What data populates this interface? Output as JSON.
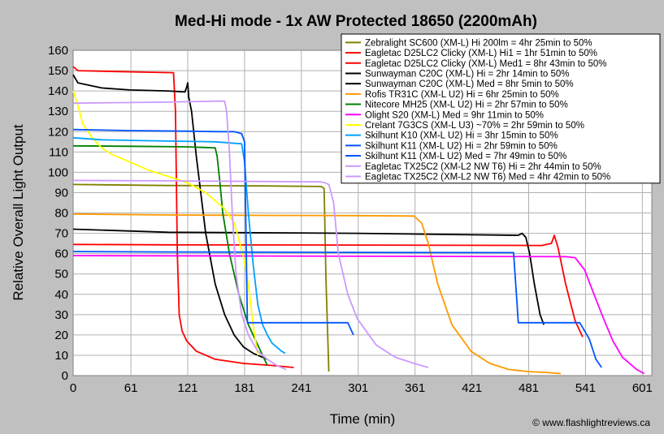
{
  "chart_data": {
    "type": "line",
    "title": "Med-Hi mode - 1x AW Protected 18650 (2200mAh)",
    "xlabel": "Time (min)",
    "ylabel": "Relative Overall Light Output",
    "xlim": [
      0,
      611
    ],
    "ylim": [
      0,
      160
    ],
    "x_ticks": [
      0,
      61,
      121,
      181,
      241,
      301,
      361,
      421,
      481,
      541,
      601
    ],
    "y_ticks": [
      0,
      10,
      20,
      30,
      40,
      50,
      60,
      70,
      80,
      90,
      100,
      110,
      120,
      130,
      140,
      150,
      160
    ],
    "grid": true,
    "legend_position": "top-right",
    "credit": "© www.flashlightreviews.ca",
    "series": [
      {
        "name": "Zebralight SC600 (XM-L) Hi 200lm = 4hr 25min to 50%",
        "color": "#808000",
        "x": [
          0,
          100,
          200,
          262,
          265,
          267,
          270
        ],
        "y": [
          94,
          93.5,
          93.3,
          93,
          92,
          47,
          2
        ]
      },
      {
        "name": "Eagletac D25LC2 Clicky (XM-L) Hi1 = 1hr 51min to 50%",
        "color": "#ff0000",
        "x": [
          0,
          5,
          50,
          106,
          108,
          110,
          112,
          115,
          120,
          130,
          150,
          180,
          210,
          233
        ],
        "y": [
          152,
          150,
          149.5,
          149,
          130,
          60,
          30,
          22,
          17,
          12,
          8,
          6,
          5,
          4
        ]
      },
      {
        "name": "Eagletac D25LC2 Clicky (XM-L) Med1 = 8hr 43min to 50%",
        "color": "#ff0000",
        "x": [
          0,
          100,
          300,
          495,
          500,
          505,
          508,
          512,
          520,
          530,
          538
        ],
        "y": [
          64.5,
          64.3,
          64.2,
          64,
          64.5,
          65,
          69,
          63,
          45,
          27,
          19
        ]
      },
      {
        "name": "Sunwayman C20C (XM-L) Hi = 2hr 14min to 50%",
        "color": "#000000",
        "x": [
          0,
          5,
          30,
          60,
          100,
          118,
          120,
          121,
          122,
          125,
          130,
          140,
          150,
          160,
          170,
          180,
          190,
          200,
          205
        ],
        "y": [
          148,
          144,
          141.5,
          140.5,
          140,
          139.5,
          142,
          144,
          137,
          130,
          108,
          70,
          45,
          30,
          20,
          14,
          11,
          9,
          8
        ]
      },
      {
        "name": "Sunwayman C20C (XM-L) Med = 8hr 5min to 50%",
        "color": "#000000",
        "x": [
          0,
          100,
          300,
          470,
          474,
          478,
          482,
          487,
          493,
          497
        ],
        "y": [
          72,
          70.5,
          70,
          69,
          70,
          68,
          60,
          45,
          30,
          25
        ]
      },
      {
        "name": "Rofis TR31C (XM-L U2) Hi = 6hr 25min to 50%",
        "color": "#ff9900",
        "x": [
          0,
          100,
          200,
          300,
          360,
          368,
          375,
          385,
          400,
          420,
          440,
          460,
          480,
          500,
          515
        ],
        "y": [
          79.5,
          79,
          78.8,
          78.7,
          78.5,
          75,
          65,
          45,
          25,
          12,
          6,
          3,
          2,
          1.5,
          1
        ]
      },
      {
        "name": "Nitecore MH25 (XM-L U2) Hi = 2hr 57min to 50%",
        "color": "#008000",
        "x": [
          0,
          60,
          120,
          150,
          152,
          155,
          158,
          165,
          175,
          185,
          195,
          200,
          205
        ],
        "y": [
          113,
          112.8,
          112.5,
          112,
          108,
          95,
          80,
          60,
          40,
          25,
          15,
          10,
          5
        ]
      },
      {
        "name": "Olight S20 (XM-L) Med = 9hr 11min to 50%",
        "color": "#ff00ff",
        "x": [
          0,
          200,
          400,
          520,
          530,
          540,
          550,
          560,
          570,
          580,
          595,
          603
        ],
        "y": [
          59,
          58.8,
          58.6,
          58.5,
          58,
          52,
          40,
          28,
          17,
          9,
          3,
          1
        ]
      },
      {
        "name": "Crelant 7G3CS (XM-L U3) ~70% = 2hr 59min to 50%",
        "color": "#ffff00",
        "x": [
          0,
          5,
          10,
          20,
          30,
          40,
          60,
          80,
          100,
          120,
          140,
          160,
          170,
          175,
          180,
          185,
          190,
          195
        ],
        "y": [
          140,
          133,
          124,
          117,
          112,
          109,
          105,
          101,
          98,
          95,
          90,
          82,
          75,
          67,
          58,
          45,
          25,
          10
        ]
      },
      {
        "name": "Skilhunt K10 (XM-L U2) Hi = 3hr 15min to 50%",
        "color": "#00a0ff",
        "x": [
          0,
          30,
          80,
          150,
          178,
          181,
          185,
          190,
          195,
          200,
          205,
          210,
          215,
          220,
          224
        ],
        "y": [
          117,
          116,
          115.5,
          115,
          114,
          105,
          80,
          55,
          35,
          25,
          20,
          16,
          14,
          12,
          11
        ]
      },
      {
        "name": "Skilhunt K11 (XM-L U2) Hi = 2hr 59min to 50%",
        "color": "#0055ff",
        "x": [
          0,
          60,
          120,
          155,
          163,
          170,
          178,
          181,
          184,
          190,
          200,
          210,
          230,
          260,
          280,
          290,
          296
        ],
        "y": [
          121,
          120.5,
          120.2,
          120,
          120,
          120,
          119,
          115,
          26,
          26,
          26,
          26,
          26,
          26,
          26,
          26,
          20
        ]
      },
      {
        "name": "Skilhunt K11 (XM-L U2) Med = 7hr 49min to 50%",
        "color": "#0055ff",
        "x": [
          0,
          100,
          300,
          450,
          465,
          468,
          470,
          480,
          500,
          520,
          535,
          545,
          552,
          558
        ],
        "y": [
          61,
          60.8,
          60.6,
          60.5,
          60.5,
          40,
          26,
          26,
          26,
          26,
          26,
          18,
          8,
          4
        ]
      },
      {
        "name": "Eagletac TX25C2 (XM-L2 NW T6) Hi = 2hr 44min to 50%",
        "color": "#cc99ff",
        "x": [
          0,
          100,
          150,
          160,
          162,
          165,
          168,
          172,
          178,
          185,
          195,
          205,
          215,
          225
        ],
        "y": [
          134,
          134.5,
          135,
          135,
          130,
          110,
          80,
          50,
          30,
          20,
          12,
          8,
          5,
          3
        ]
      },
      {
        "name": "Eagletac TX25C2 (XM-L2 NW T6) Med = 4hr 42min to 50%",
        "color": "#cc99ff",
        "x": [
          0,
          100,
          200,
          260,
          265,
          270,
          275,
          280,
          290,
          300,
          320,
          340,
          360,
          375
        ],
        "y": [
          96,
          95.8,
          95.5,
          95.3,
          95,
          94,
          85,
          60,
          40,
          28,
          15,
          9,
          6,
          4
        ]
      }
    ]
  }
}
